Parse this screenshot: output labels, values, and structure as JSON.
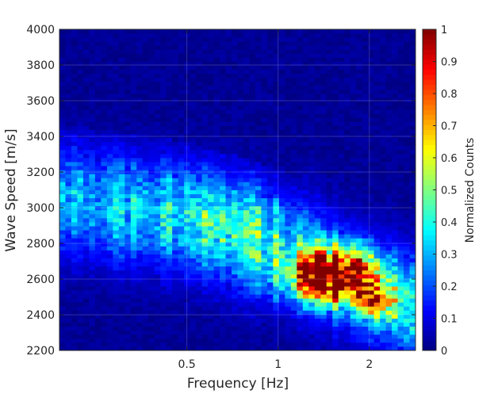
{
  "chart_data": {
    "type": "heatmap",
    "title": "",
    "xlabel": "Frequency [Hz]",
    "ylabel": "Wave Speed [m/s]",
    "x_scale": "log",
    "xlim": [
      0.19,
      2.84
    ],
    "ylim": [
      2200,
      4000
    ],
    "x_ticks": [
      0.5,
      1,
      2
    ],
    "x_tick_labels": [
      "0.5",
      "1",
      "2"
    ],
    "y_ticks": [
      2200,
      2400,
      2600,
      2800,
      3000,
      3200,
      3400,
      3600,
      3800,
      4000
    ],
    "y_tick_labels": [
      "2200",
      "2400",
      "2600",
      "2800",
      "3000",
      "3200",
      "3400",
      "3600",
      "3800",
      "4000"
    ],
    "colorbar": {
      "label": "Normalized Counts",
      "colormap": "jet",
      "range": [
        0,
        1
      ],
      "ticks": [
        0,
        0.1,
        0.2,
        0.3,
        0.4,
        0.5,
        0.6,
        0.7,
        0.8,
        0.9,
        1
      ],
      "tick_labels": [
        "0",
        "0.1",
        "0.2",
        "0.3",
        "0.4",
        "0.5",
        "0.6",
        "0.7",
        "0.8",
        "0.9",
        "1"
      ]
    },
    "grid": true,
    "peak": {
      "frequency_hz": 1.5,
      "wave_speed_ms": 2620,
      "value": 1.0
    },
    "ridge": {
      "frequency_hz": [
        0.2,
        0.3,
        0.5,
        0.7,
        1.0,
        1.3,
        1.6,
        2.0,
        2.5,
        2.84
      ],
      "wave_speed_ms": [
        3050,
        3000,
        2950,
        2880,
        2800,
        2700,
        2620,
        2540,
        2460,
        2420
      ]
    },
    "grid_size": {
      "x_bins": 60,
      "y_bins": 80
    }
  }
}
